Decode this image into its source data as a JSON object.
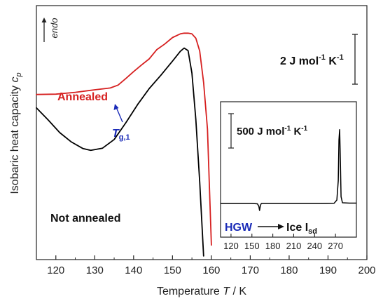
{
  "chart_data": [
    {
      "type": "line",
      "xlabel": "Temperature",
      "xlabel_symbol": "T",
      "xlabel_unit": " / K",
      "ylabel": "Isobaric heat capacity",
      "ylabel_symbol": "c",
      "ylabel_sub": "p",
      "xlim": [
        115,
        200
      ],
      "x_ticks": [
        120,
        130,
        140,
        150,
        160,
        170,
        180,
        190,
        200
      ],
      "y_ticks_shown": false,
      "arrow_label": "endo",
      "scale_bar": {
        "value": 2,
        "label": "2 J mol",
        "sup1": "-1",
        "mid": " K",
        "sup2": "-1"
      },
      "series": [
        {
          "name": "Annealed",
          "color": "#d62020",
          "x": [
            115,
            120,
            125,
            130,
            134,
            136,
            138,
            140,
            142,
            144,
            146,
            148,
            150,
            152,
            153,
            154,
            155,
            156,
            157,
            158,
            159,
            160
          ],
          "y": [
            4.55,
            4.56,
            4.61,
            4.68,
            4.73,
            4.81,
            4.99,
            5.18,
            5.36,
            5.53,
            5.79,
            5.94,
            6.12,
            6.22,
            6.24,
            6.24,
            6.22,
            6.1,
            5.75,
            4.88,
            3.6,
            0.4
          ]
        },
        {
          "name": "Not annealed",
          "color": "#000000",
          "x": [
            115,
            118,
            121,
            124,
            127,
            129,
            132,
            135,
            138,
            141,
            144,
            147,
            150,
            152,
            153,
            154,
            155,
            156,
            157,
            158
          ],
          "y": [
            4.18,
            3.85,
            3.5,
            3.24,
            3.06,
            3.01,
            3.07,
            3.31,
            3.77,
            4.27,
            4.71,
            5.08,
            5.47,
            5.74,
            5.83,
            5.76,
            5.14,
            3.86,
            2.15,
            0.1
          ]
        }
      ],
      "annotations": [
        {
          "text": "T",
          "sub": "g,1",
          "x": 136.5,
          "y": 4.81,
          "color": "#1a2bb8"
        }
      ]
    },
    {
      "type": "line",
      "inset": true,
      "xlim": [
        105,
        300
      ],
      "x_ticks": [
        120,
        150,
        180,
        210,
        240,
        270
      ],
      "scale_bar": {
        "value": 500,
        "label": "500 J mol",
        "sup1": "-1",
        "mid": " K",
        "sup2": "-1"
      },
      "series": [
        {
          "color": "#000000",
          "x": [
            105,
            130,
            150,
            158,
            160,
            161,
            162,
            163,
            164,
            166,
            170,
            190,
            220,
            250,
            268,
            272,
            274,
            275,
            276,
            277,
            278,
            280,
            290,
            300
          ],
          "y": [
            0,
            0,
            0,
            -3,
            -25,
            -62,
            -25,
            -5,
            0,
            0,
            0,
            0,
            0,
            0,
            2,
            30,
            200,
            560,
            650,
            380,
            60,
            6,
            3,
            3
          ]
        }
      ],
      "annotations": [
        {
          "text": "HGW",
          "color": "#1a2bb8"
        },
        {
          "text": "Ice I",
          "sub": "sd",
          "color": "#000000"
        }
      ]
    }
  ]
}
